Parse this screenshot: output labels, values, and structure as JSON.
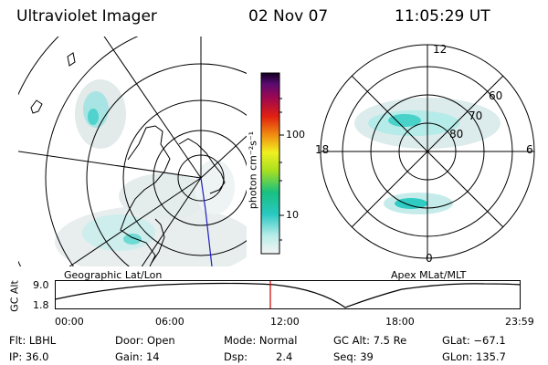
{
  "header": {
    "title": "Ultraviolet Imager",
    "date": "02 Nov 07",
    "time": "11:05:29 UT"
  },
  "left_map": {
    "caption": "Geographic Lat/Lon"
  },
  "right_map": {
    "caption": "Apex MLat/MLT",
    "lat_labels": [
      "80",
      "70",
      "60"
    ],
    "mlt_labels": [
      "12",
      "18",
      "6",
      "0"
    ]
  },
  "colorbar": {
    "unit_label": "photon cm⁻²s⁻¹",
    "ticks": [
      "100",
      "10"
    ],
    "scale": "log"
  },
  "orbit": {
    "axis_label": "GC Alt",
    "y_ticks": [
      "9.0",
      "1.8"
    ],
    "x_ticks": [
      "00:00",
      "06:00",
      "12:00",
      "18:00",
      "23:59"
    ],
    "marker_color": "#cc0000"
  },
  "info": {
    "flt": "Flt: LBHL",
    "door": "Door: Open",
    "mode": "Mode: Normal",
    "gc_alt": "GC Alt: 7.5 Re",
    "glat": "GLat: −67.1",
    "ip": "IP: 36.0",
    "gain": "Gain: 14",
    "dsp": "Dsp:",
    "dsp_val": "2.4",
    "seq": "Seq: 39",
    "glon": "GLon: 135.7"
  }
}
